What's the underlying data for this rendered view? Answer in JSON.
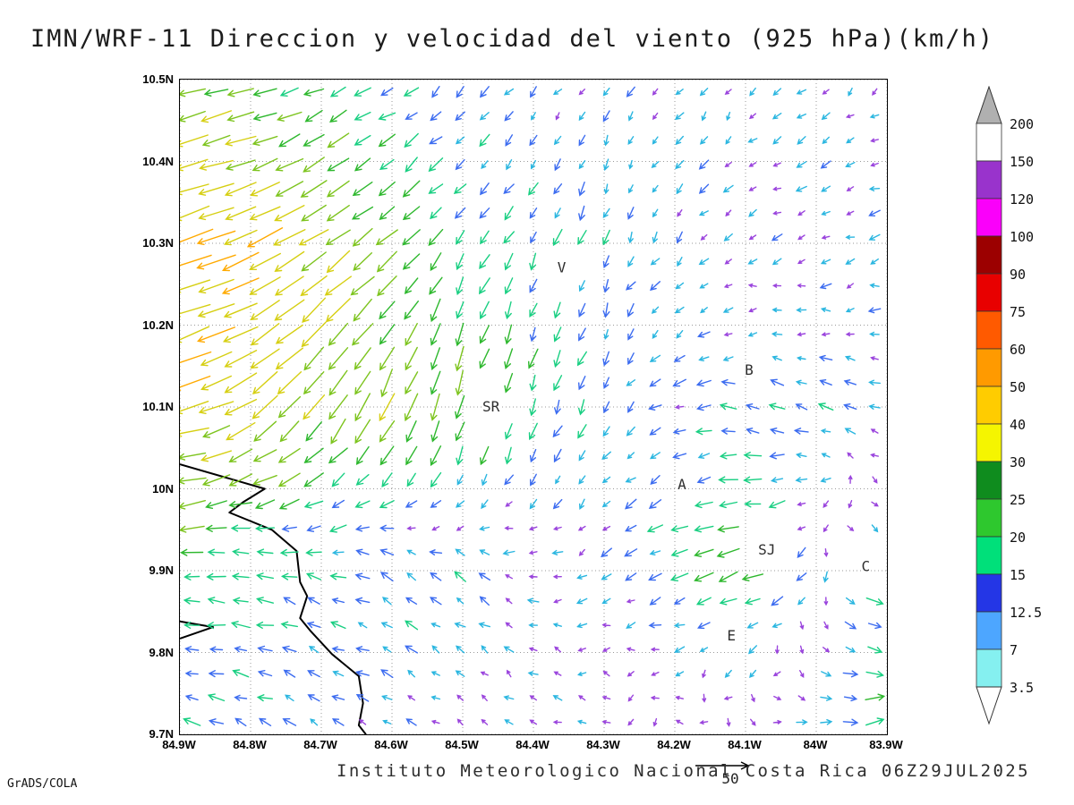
{
  "title": "IMN/WRF-11 Direccion y velocidad del viento (925 hPa)(km/h)",
  "footer": {
    "institute": "Instituto Meteorologico Nacional Costa Rica 06Z29JUL2025",
    "credit": "GrADS/COLA",
    "ref_vector_label": "50"
  },
  "chart_data": {
    "type": "vector_field",
    "title": "IMN/WRF-11 Direccion y velocidad del viento (925 hPa)(km/h)",
    "units": "km/h",
    "level": "925 hPa",
    "valid_time": "06Z29JUL2025",
    "x_range": [
      -84.9,
      -83.9
    ],
    "y_range": [
      9.7,
      10.5
    ],
    "grid": "dotted",
    "x_ticks": [
      {
        "v": -84.9,
        "t": "84.9W"
      },
      {
        "v": -84.8,
        "t": "84.8W"
      },
      {
        "v": -84.7,
        "t": "84.7W"
      },
      {
        "v": -84.6,
        "t": "84.6W"
      },
      {
        "v": -84.5,
        "t": "84.5W"
      },
      {
        "v": -84.4,
        "t": "84.4W"
      },
      {
        "v": -84.3,
        "t": "84.3W"
      },
      {
        "v": -84.2,
        "t": "84.2W"
      },
      {
        "v": -84.1,
        "t": "84.1W"
      },
      {
        "v": -84.0,
        "t": "84W"
      },
      {
        "v": -83.9,
        "t": "83.9W"
      }
    ],
    "y_ticks": [
      {
        "v": 10.5,
        "t": "10.5N"
      },
      {
        "v": 10.4,
        "t": "10.4N"
      },
      {
        "v": 10.3,
        "t": "10.3N"
      },
      {
        "v": 10.2,
        "t": "10.2N"
      },
      {
        "v": 10.1,
        "t": "10.1N"
      },
      {
        "v": 10.0,
        "t": "10N"
      },
      {
        "v": 9.9,
        "t": "9.9N"
      },
      {
        "v": 9.8,
        "t": "9.8N"
      },
      {
        "v": 9.7,
        "t": "9.7N"
      }
    ],
    "legend": {
      "units": "km/h",
      "levels": [
        3.5,
        7,
        12.5,
        15,
        20,
        25,
        30,
        40,
        50,
        60,
        75,
        90,
        100,
        120,
        150,
        200
      ],
      "labels": [
        "3.5",
        "7",
        "12.5",
        "15",
        "20",
        "25",
        "30",
        "40",
        "50",
        "60",
        "75",
        "90",
        "100",
        "120",
        "150",
        "200"
      ],
      "colors": [
        "#85f0f0",
        "#4da6ff",
        "#2436e6",
        "#00e07a",
        "#2ec82e",
        "#0f8c1e",
        "#f5f500",
        "#ffcc00",
        "#ff9a00",
        "#ff5a00",
        "#e80000",
        "#9c0000",
        "#fa00fa",
        "#9933cc",
        "#ffffff"
      ],
      "under_color": "#ffffff",
      "over_color": "#b0b0b0"
    },
    "stations": [
      {
        "label": "V",
        "lon": -84.36,
        "lat": 10.27
      },
      {
        "label": "B",
        "lon": -84.095,
        "lat": 10.145
      },
      {
        "label": "SR",
        "lon": -84.46,
        "lat": 10.1
      },
      {
        "label": "A",
        "lon": -84.19,
        "lat": 10.005
      },
      {
        "label": "SJ",
        "lon": -84.07,
        "lat": 9.925
      },
      {
        "label": "C",
        "lon": -83.93,
        "lat": 9.905
      },
      {
        "label": "E",
        "lon": -84.12,
        "lat": 9.82
      }
    ],
    "coastline": [
      [
        [
          -84.9,
          10.03
        ],
        [
          -84.82,
          10.01
        ],
        [
          -84.78,
          10.0
        ],
        [
          -84.81,
          9.984
        ],
        [
          -84.83,
          9.971
        ],
        [
          -84.77,
          9.95
        ],
        [
          -84.735,
          9.924
        ],
        [
          -84.73,
          9.886
        ],
        [
          -84.72,
          9.869
        ],
        [
          -84.73,
          9.842
        ],
        [
          -84.715,
          9.826
        ],
        [
          -84.685,
          9.798
        ],
        [
          -84.647,
          9.771
        ],
        [
          -84.641,
          9.738
        ],
        [
          -84.647,
          9.711
        ],
        [
          -84.637,
          9.7
        ]
      ],
      [
        [
          -84.9,
          9.838
        ],
        [
          -84.853,
          9.831
        ],
        [
          -84.9,
          9.817
        ]
      ]
    ],
    "field": {
      "comment": "coarse control grid of wind components in km/h, u eastward, v northward; rows ordered by lats",
      "lons": [
        -84.9,
        -84.7,
        -84.5,
        -84.3,
        -84.1,
        -83.9
      ],
      "lats": [
        10.5,
        10.3,
        10.1,
        9.9,
        9.7
      ],
      "u": [
        [
          -30,
          -18,
          -8,
          -5,
          -6,
          -7
        ],
        [
          -45,
          -30,
          -10,
          -5,
          -8,
          -9
        ],
        [
          -40,
          -20,
          -5,
          -7,
          -15,
          -10
        ],
        [
          -20,
          -15,
          -10,
          -8,
          -25,
          18
        ],
        [
          -15,
          -10,
          -6,
          -5,
          6,
          20
        ]
      ],
      "v": [
        [
          -5,
          -8,
          -8,
          -7,
          -6,
          -5
        ],
        [
          -15,
          -20,
          -15,
          -14,
          -4,
          -3
        ],
        [
          -10,
          -30,
          -28,
          -12,
          3,
          5
        ],
        [
          0,
          5,
          8,
          -5,
          -8,
          -10
        ],
        [
          5,
          5,
          4,
          3,
          -4,
          5
        ]
      ]
    },
    "arrow_palette": [
      {
        "max": 8.5,
        "color": "#9a44dd"
      },
      {
        "max": 12.5,
        "color": "#2ab6e0"
      },
      {
        "max": 16,
        "color": "#3c6cf0"
      },
      {
        "max": 21,
        "color": "#19cf82"
      },
      {
        "max": 27,
        "color": "#2eb82e"
      },
      {
        "max": 34,
        "color": "#7dc41e"
      },
      {
        "max": 42,
        "color": "#d6cf12"
      },
      {
        "max": 52,
        "color": "#ffaa00"
      },
      {
        "max": 64,
        "color": "#ff7a00"
      },
      {
        "max": 999,
        "color": "#f03a3a"
      }
    ],
    "ref_vector": {
      "value": 50,
      "label": "50"
    }
  }
}
